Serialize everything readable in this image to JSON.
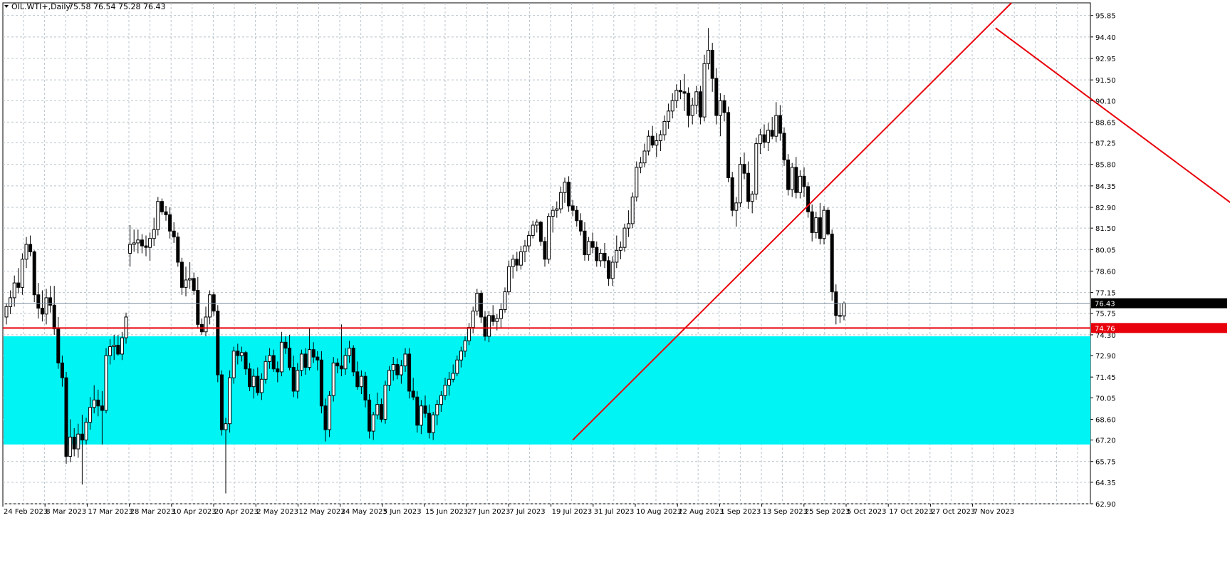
{
  "header": {
    "symbol": "OIL.WTI+,Daily",
    "ohlc": "75.58 76.54 75.28 76.43"
  },
  "colors": {
    "background": "#ffffff",
    "grid": "#b8c4cc",
    "candle": "#000000",
    "zone": "#00f4f4",
    "trendline": "#e8000b",
    "price_line": "#8090a0"
  },
  "chart_data": {
    "type": "candlestick",
    "ylim": [
      62.9,
      96.7
    ],
    "y_ticks": [
      "95.85",
      "94.40",
      "92.95",
      "91.50",
      "90.10",
      "88.65",
      "87.25",
      "85.80",
      "84.35",
      "82.90",
      "81.50",
      "80.05",
      "78.60",
      "77.15",
      "75.75",
      "74.30",
      "72.90",
      "71.45",
      "70.05",
      "68.60",
      "67.20",
      "65.75",
      "64.35",
      "62.90"
    ],
    "x_ticks": [
      "24 Feb 2023",
      "8 Mar 2023",
      "17 Mar 2023",
      "28 Mar 2023",
      "10 Apr 2023",
      "20 Apr 2023",
      "2 May 2023",
      "12 May 2023",
      "24 May 2023",
      "5 Jun 2023",
      "15 Jun 2023",
      "27 Jun 2023",
      "7 Jul 2023",
      "19 Jul 2023",
      "31 Jul 2023",
      "10 Aug 2023",
      "22 Aug 2023",
      "1 Sep 2023",
      "13 Sep 2023",
      "25 Sep 2023",
      "5 Oct 2023",
      "17 Oct 2023",
      "27 Oct 2023",
      "7 Nov 2023"
    ],
    "current_price": "76.43",
    "support_price": "74.76",
    "zone": {
      "top": 74.2,
      "bottom": 66.9
    },
    "trendlines": [
      {
        "name": "rising",
        "from": {
          "bar": 142,
          "price": 67.2
        },
        "to": {
          "bar": 252,
          "price": 96.7
        }
      },
      {
        "name": "falling",
        "from": {
          "bar": 248,
          "price": 95.0
        },
        "to": {
          "bar": 336,
          "price": 77.4
        }
      }
    ],
    "candles": [
      [
        75.5,
        76.4,
        75.0,
        76.2
      ],
      [
        76.2,
        77.3,
        75.7,
        76.8
      ],
      [
        76.8,
        78.3,
        76.2,
        77.8
      ],
      [
        77.8,
        78.8,
        77.1,
        77.5
      ],
      [
        77.5,
        79.8,
        77.0,
        79.4
      ],
      [
        79.4,
        80.9,
        78.8,
        80.4
      ],
      [
        80.4,
        81.0,
        79.6,
        79.9
      ],
      [
        79.9,
        80.0,
        76.5,
        77.0
      ],
      [
        77.0,
        77.8,
        75.4,
        76.1
      ],
      [
        76.1,
        77.3,
        75.2,
        75.7
      ],
      [
        75.7,
        77.4,
        75.0,
        76.8
      ],
      [
        76.8,
        77.6,
        75.8,
        76.3
      ],
      [
        76.3,
        77.6,
        74.3,
        74.7
      ],
      [
        74.7,
        75.5,
        72.0,
        72.4
      ],
      [
        72.4,
        72.9,
        70.8,
        71.4
      ],
      [
        71.4,
        71.8,
        65.6,
        66.1
      ],
      [
        66.1,
        68.6,
        65.7,
        67.4
      ],
      [
        67.4,
        68.0,
        66.1,
        66.6
      ],
      [
        66.6,
        68.3,
        66.0,
        67.6
      ],
      [
        67.6,
        68.9,
        64.2,
        67.2
      ],
      [
        67.2,
        68.7,
        66.9,
        68.4
      ],
      [
        68.4,
        70.1,
        67.9,
        69.4
      ],
      [
        69.4,
        70.9,
        69.0,
        69.9
      ],
      [
        69.9,
        70.6,
        68.8,
        69.5
      ],
      [
        69.5,
        70.5,
        66.9,
        69.2
      ],
      [
        69.2,
        73.4,
        69.0,
        72.9
      ],
      [
        72.9,
        74.0,
        72.3,
        73.5
      ],
      [
        73.5,
        74.3,
        72.6,
        73.6
      ],
      [
        73.6,
        74.3,
        72.9,
        73.0
      ],
      [
        73.0,
        74.5,
        72.6,
        74.1
      ],
      [
        74.1,
        75.8,
        73.7,
        75.5
      ],
      [
        79.8,
        81.7,
        78.9,
        80.4
      ],
      [
        80.4,
        81.4,
        79.9,
        80.5
      ],
      [
        80.5,
        81.4,
        79.8,
        80.7
      ],
      [
        80.7,
        81.1,
        79.8,
        80.3
      ],
      [
        80.3,
        81.0,
        79.6,
        80.2
      ],
      [
        80.2,
        81.2,
        79.3,
        80.8
      ],
      [
        80.8,
        82.2,
        80.3,
        81.4
      ],
      [
        81.4,
        83.6,
        81.0,
        83.3
      ],
      [
        83.3,
        83.5,
        82.4,
        82.6
      ],
      [
        82.6,
        83.0,
        82.0,
        82.4
      ],
      [
        82.4,
        82.9,
        80.8,
        81.3
      ],
      [
        81.3,
        81.9,
        80.5,
        80.9
      ],
      [
        80.9,
        81.2,
        78.9,
        79.2
      ],
      [
        79.2,
        79.5,
        77.0,
        77.5
      ],
      [
        77.5,
        78.9,
        76.9,
        78.0
      ],
      [
        78.0,
        79.2,
        77.4,
        78.1
      ],
      [
        78.1,
        78.5,
        77.0,
        77.3
      ],
      [
        77.3,
        78.2,
        74.7,
        75.0
      ],
      [
        75.0,
        75.4,
        74.3,
        74.5
      ],
      [
        74.5,
        76.2,
        74.2,
        75.5
      ],
      [
        75.5,
        77.3,
        75.0,
        77.0
      ],
      [
        77.0,
        77.2,
        75.6,
        75.9
      ],
      [
        75.9,
        76.3,
        71.1,
        71.6
      ],
      [
        71.6,
        71.9,
        67.5,
        67.9
      ],
      [
        67.9,
        68.7,
        63.6,
        68.3
      ],
      [
        68.3,
        71.9,
        67.7,
        71.4
      ],
      [
        71.4,
        73.5,
        71.0,
        73.2
      ],
      [
        73.2,
        73.7,
        72.3,
        72.9
      ],
      [
        72.9,
        73.5,
        72.5,
        73.1
      ],
      [
        73.1,
        73.2,
        71.6,
        72.0
      ],
      [
        72.0,
        72.4,
        70.5,
        70.8
      ],
      [
        70.8,
        72.0,
        70.0,
        71.5
      ],
      [
        71.5,
        72.1,
        70.2,
        70.4
      ],
      [
        70.4,
        71.7,
        69.9,
        71.3
      ],
      [
        71.3,
        72.9,
        71.0,
        72.5
      ],
      [
        72.5,
        73.4,
        72.0,
        72.9
      ],
      [
        72.9,
        73.3,
        71.8,
        72.0
      ],
      [
        72.0,
        72.5,
        71.1,
        71.8
      ],
      [
        71.8,
        74.5,
        71.5,
        73.8
      ],
      [
        73.8,
        74.2,
        73.0,
        73.4
      ],
      [
        73.4,
        74.3,
        71.9,
        72.1
      ],
      [
        72.1,
        72.9,
        70.1,
        70.5
      ],
      [
        70.5,
        72.4,
        70.0,
        71.9
      ],
      [
        71.9,
        73.3,
        71.5,
        73.0
      ],
      [
        73.0,
        73.4,
        71.6,
        72.1
      ],
      [
        72.1,
        74.8,
        71.9,
        73.3
      ],
      [
        73.3,
        73.8,
        72.4,
        72.8
      ],
      [
        72.8,
        73.2,
        71.9,
        72.6
      ],
      [
        72.6,
        73.2,
        69.0,
        69.5
      ],
      [
        69.5,
        70.0,
        67.1,
        67.9
      ],
      [
        67.9,
        70.5,
        67.4,
        70.2
      ],
      [
        70.2,
        72.8,
        69.8,
        72.4
      ],
      [
        72.4,
        72.7,
        71.7,
        72.2
      ],
      [
        72.2,
        75.0,
        71.5,
        72.0
      ],
      [
        72.0,
        73.4,
        71.6,
        72.9
      ],
      [
        72.9,
        73.9,
        72.4,
        73.4
      ],
      [
        73.4,
        73.6,
        71.5,
        71.8
      ],
      [
        71.8,
        72.5,
        70.6,
        70.8
      ],
      [
        70.8,
        71.9,
        70.3,
        71.5
      ],
      [
        71.5,
        71.8,
        69.4,
        69.9
      ],
      [
        69.9,
        70.3,
        67.3,
        67.8
      ],
      [
        67.8,
        69.1,
        67.2,
        68.9
      ],
      [
        68.9,
        70.4,
        68.6,
        69.6
      ],
      [
        69.6,
        70.0,
        68.4,
        68.6
      ],
      [
        68.6,
        71.2,
        68.3,
        70.9
      ],
      [
        70.9,
        72.2,
        70.5,
        71.9
      ],
      [
        71.9,
        72.8,
        71.2,
        72.3
      ],
      [
        72.3,
        72.7,
        71.3,
        71.6
      ],
      [
        71.6,
        72.6,
        71.0,
        72.2
      ],
      [
        72.2,
        73.4,
        71.8,
        73.0
      ],
      [
        73.0,
        73.4,
        70.0,
        70.5
      ],
      [
        70.5,
        71.4,
        69.9,
        70.1
      ],
      [
        70.1,
        70.5,
        67.7,
        68.2
      ],
      [
        68.2,
        69.9,
        67.6,
        69.5
      ],
      [
        69.5,
        70.2,
        68.7,
        69.0
      ],
      [
        69.0,
        69.6,
        67.3,
        67.7
      ],
      [
        67.7,
        69.1,
        67.2,
        68.9
      ],
      [
        68.9,
        69.9,
        68.2,
        69.6
      ],
      [
        69.6,
        70.5,
        69.1,
        70.2
      ],
      [
        70.2,
        71.4,
        69.9,
        70.9
      ],
      [
        70.9,
        71.8,
        70.2,
        71.3
      ],
      [
        71.3,
        72.3,
        71.1,
        71.7
      ],
      [
        71.7,
        72.9,
        71.5,
        72.6
      ],
      [
        72.6,
        73.5,
        72.1,
        73.2
      ],
      [
        73.2,
        74.2,
        72.8,
        73.9
      ],
      [
        73.9,
        75.1,
        73.6,
        74.8
      ],
      [
        74.8,
        76.2,
        74.4,
        75.9
      ],
      [
        75.9,
        77.4,
        75.6,
        77.1
      ],
      [
        77.1,
        77.3,
        75.1,
        75.5
      ],
      [
        75.5,
        75.9,
        73.9,
        74.2
      ],
      [
        74.2,
        75.9,
        73.8,
        75.6
      ],
      [
        75.6,
        76.3,
        74.9,
        75.2
      ],
      [
        75.2,
        75.7,
        74.6,
        75.4
      ],
      [
        75.4,
        76.4,
        74.7,
        76.0
      ],
      [
        76.0,
        77.5,
        75.8,
        77.2
      ],
      [
        77.2,
        79.3,
        77.0,
        78.9
      ],
      [
        78.9,
        79.7,
        78.1,
        79.4
      ],
      [
        79.4,
        79.9,
        78.6,
        79.0
      ],
      [
        79.0,
        80.3,
        78.7,
        79.9
      ],
      [
        79.9,
        80.7,
        79.2,
        80.3
      ],
      [
        80.3,
        81.3,
        79.9,
        81.0
      ],
      [
        81.0,
        82.0,
        80.8,
        81.7
      ],
      [
        81.7,
        82.1,
        81.2,
        81.9
      ],
      [
        81.9,
        82.0,
        80.3,
        80.6
      ],
      [
        80.6,
        80.9,
        78.9,
        79.4
      ],
      [
        79.4,
        82.5,
        79.1,
        82.3
      ],
      [
        82.3,
        83.0,
        81.2,
        82.7
      ],
      [
        82.7,
        83.3,
        82.2,
        82.8
      ],
      [
        82.8,
        84.3,
        82.5,
        83.9
      ],
      [
        83.9,
        84.9,
        83.2,
        84.6
      ],
      [
        84.6,
        85.0,
        82.6,
        83.0
      ],
      [
        83.0,
        83.4,
        82.3,
        82.7
      ],
      [
        82.7,
        83.0,
        81.6,
        82.0
      ],
      [
        82.0,
        82.5,
        81.0,
        81.3
      ],
      [
        81.3,
        81.9,
        79.3,
        79.7
      ],
      [
        79.7,
        80.9,
        79.3,
        80.6
      ],
      [
        80.6,
        81.2,
        79.8,
        80.2
      ],
      [
        80.2,
        80.6,
        78.9,
        79.3
      ],
      [
        79.3,
        80.1,
        78.9,
        79.8
      ],
      [
        79.8,
        80.5,
        78.8,
        79.3
      ],
      [
        79.3,
        79.6,
        77.6,
        78.1
      ],
      [
        78.1,
        79.6,
        77.6,
        79.2
      ],
      [
        79.2,
        81.0,
        78.8,
        80.0
      ],
      [
        80.0,
        80.6,
        79.4,
        80.2
      ],
      [
        80.2,
        81.8,
        79.9,
        81.5
      ],
      [
        81.5,
        82.7,
        80.9,
        81.8
      ],
      [
        81.8,
        83.9,
        81.5,
        83.6
      ],
      [
        83.6,
        86.0,
        83.3,
        85.6
      ],
      [
        85.6,
        86.3,
        85.2,
        85.9
      ],
      [
        85.9,
        87.2,
        85.6,
        86.7
      ],
      [
        86.7,
        88.1,
        86.4,
        87.7
      ],
      [
        87.7,
        88.4,
        86.9,
        87.1
      ],
      [
        87.1,
        87.9,
        86.3,
        87.4
      ],
      [
        87.4,
        88.1,
        86.7,
        87.8
      ],
      [
        87.8,
        89.1,
        87.4,
        88.7
      ],
      [
        88.7,
        89.9,
        88.2,
        89.4
      ],
      [
        89.4,
        90.6,
        88.9,
        90.1
      ],
      [
        90.1,
        91.2,
        89.6,
        90.8
      ],
      [
        90.8,
        91.5,
        90.2,
        90.7
      ],
      [
        90.7,
        91.9,
        89.4,
        90.6
      ],
      [
        90.6,
        91.0,
        88.3,
        89.1
      ],
      [
        89.1,
        90.3,
        88.5,
        89.8
      ],
      [
        89.8,
        91.1,
        89.2,
        90.7
      ],
      [
        90.7,
        91.1,
        88.5,
        89.0
      ],
      [
        89.0,
        93.2,
        88.7,
        92.6
      ],
      [
        92.6,
        95.0,
        92.2,
        93.5
      ],
      [
        93.5,
        94.0,
        90.7,
        91.6
      ],
      [
        91.6,
        92.3,
        88.5,
        89.1
      ],
      [
        89.1,
        90.6,
        87.7,
        90.1
      ],
      [
        90.1,
        90.5,
        88.7,
        89.3
      ],
      [
        89.3,
        89.7,
        84.6,
        84.9
      ],
      [
        84.9,
        85.3,
        82.3,
        82.7
      ],
      [
        82.7,
        83.6,
        81.6,
        83.2
      ],
      [
        83.2,
        86.3,
        82.9,
        85.8
      ],
      [
        85.8,
        86.6,
        84.8,
        85.2
      ],
      [
        85.2,
        86.0,
        82.8,
        83.3
      ],
      [
        83.3,
        84.0,
        82.5,
        83.8
      ],
      [
        83.8,
        87.6,
        83.4,
        87.2
      ],
      [
        87.2,
        88.2,
        86.5,
        87.8
      ],
      [
        87.8,
        88.5,
        86.9,
        87.3
      ],
      [
        87.3,
        88.6,
        86.7,
        88.1
      ],
      [
        88.1,
        89.0,
        87.5,
        87.7
      ],
      [
        87.7,
        90.0,
        87.3,
        89.1
      ],
      [
        89.1,
        89.8,
        87.4,
        87.9
      ],
      [
        87.9,
        88.3,
        85.7,
        86.1
      ],
      [
        86.1,
        86.5,
        83.7,
        84.1
      ],
      [
        84.1,
        85.9,
        83.6,
        85.6
      ],
      [
        85.6,
        86.3,
        83.5,
        83.9
      ],
      [
        83.9,
        85.4,
        83.5,
        85.0
      ],
      [
        85.0,
        85.6,
        83.6,
        84.3
      ],
      [
        84.3,
        84.6,
        82.2,
        82.6
      ],
      [
        82.6,
        83.1,
        80.6,
        81.2
      ],
      [
        81.2,
        82.6,
        80.8,
        82.2
      ],
      [
        82.2,
        83.2,
        80.4,
        80.8
      ],
      [
        80.8,
        83.0,
        80.4,
        82.7
      ],
      [
        82.7,
        82.9,
        81.0,
        81.1
      ],
      [
        81.1,
        81.4,
        76.6,
        77.2
      ],
      [
        77.2,
        77.7,
        75.0,
        75.6
      ],
      [
        75.6,
        76.4,
        75.1,
        75.6
      ],
      [
        75.58,
        76.54,
        75.28,
        76.43
      ]
    ]
  }
}
